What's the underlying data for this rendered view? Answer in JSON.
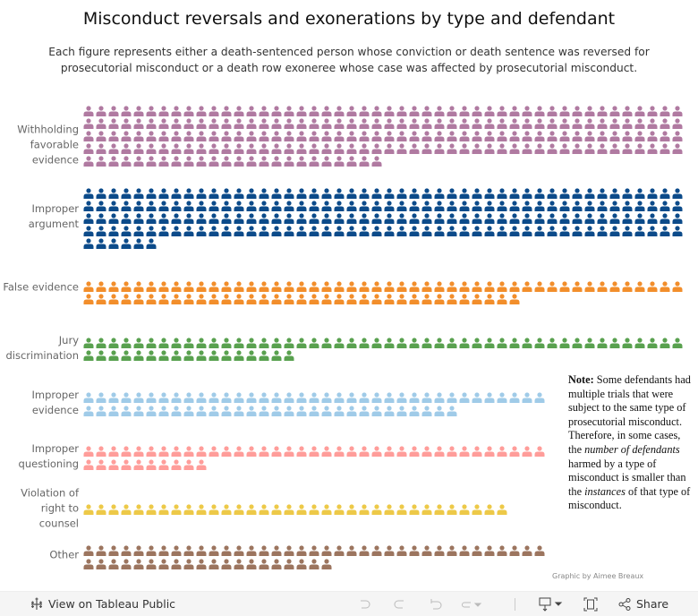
{
  "title": "Misconduct reversals and exonerations by type and defendant",
  "subtitle": "Each figure represents either a death-sentenced person whose conviction or death sentence was reversed for prosecutorial misconduct or a death row exoneree whose case was affected by prosecutorial misconduct.",
  "chart_data": {
    "type": "pictogram",
    "unit": "one figure = one person",
    "categories": [
      "Withholding favorable evidence",
      "Improper argument",
      "False evidence",
      "Jury discrimination",
      "Improper evidence",
      "Improper questioning",
      "Violation of right to counsel",
      "Other"
    ],
    "values": [
      216,
      198,
      83,
      65,
      67,
      47,
      34,
      57
    ],
    "colors": [
      "#b07aa1",
      "#0c4b8a",
      "#f28e2b",
      "#59a14f",
      "#a0cbe8",
      "#ff9d9a",
      "#edc948",
      "#9c755f"
    ],
    "icon": "person-icon"
  },
  "labels": [
    [
      "Withholding",
      "favorable",
      "evidence"
    ],
    [
      "Improper",
      "argument"
    ],
    [
      "False evidence"
    ],
    [
      "Jury",
      "discrimination"
    ],
    [
      "Improper",
      "evidence"
    ],
    [
      "Improper",
      "questioning"
    ],
    [
      "Violation of",
      "right to",
      "counsel"
    ],
    [
      "Other"
    ]
  ],
  "note": {
    "bold": "Note:",
    "t1": " Some defendants had multiple trials that were subject to the same type of prosecutorial misconduct. Therefore, in some cases, the ",
    "i1": "number of defendants",
    "t2": " harmed by a type of misconduct is smaller than",
    "t3": "the ",
    "i2": "instances",
    "t4": " of that type of misconduct."
  },
  "credit": "Graphic by Aimee Breaux",
  "footer": {
    "view_label": "View on Tableau Public",
    "share_label": "Share"
  }
}
